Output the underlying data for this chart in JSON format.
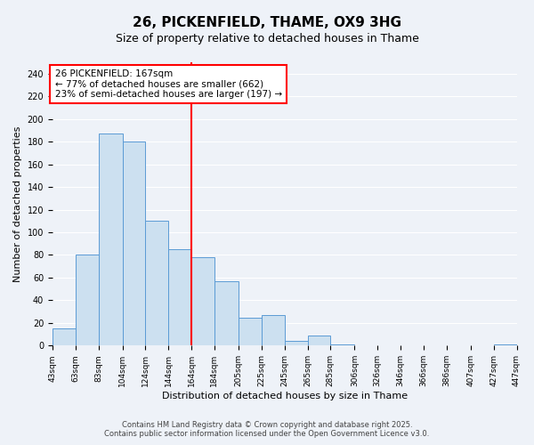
{
  "title": "26, PICKENFIELD, THAME, OX9 3HG",
  "subtitle": "Size of property relative to detached houses in Thame",
  "xlabel": "Distribution of detached houses by size in Thame",
  "ylabel": "Number of detached properties",
  "bin_edges": [
    43,
    63,
    83,
    104,
    124,
    144,
    164,
    184,
    205,
    225,
    245,
    265,
    285,
    306,
    326,
    346,
    366,
    386,
    407,
    427,
    447
  ],
  "bar_heights": [
    15,
    80,
    187,
    180,
    110,
    85,
    78,
    57,
    25,
    27,
    4,
    9,
    1,
    0,
    0,
    0,
    0,
    0,
    0,
    1
  ],
  "bar_face_color": "#cce0f0",
  "bar_edge_color": "#5b9bd5",
  "vline_x": 164,
  "vline_color": "red",
  "ylim": [
    0,
    250
  ],
  "yticks": [
    0,
    20,
    40,
    60,
    80,
    100,
    120,
    140,
    160,
    180,
    200,
    220,
    240
  ],
  "annotation_title": "26 PICKENFIELD: 167sqm",
  "annotation_line2": "← 77% of detached houses are smaller (662)",
  "annotation_line3": "23% of semi-detached houses are larger (197) →",
  "annotation_box_color": "white",
  "annotation_box_edge": "red",
  "footer_line1": "Contains HM Land Registry data © Crown copyright and database right 2025.",
  "footer_line2": "Contains public sector information licensed under the Open Government Licence v3.0.",
  "bg_color": "#eef2f8",
  "grid_color": "white",
  "title_fontsize": 11,
  "subtitle_fontsize": 9,
  "axis_label_fontsize": 8,
  "tick_fontsize": 7,
  "footer_fontsize": 6,
  "annotation_fontsize": 7.5
}
